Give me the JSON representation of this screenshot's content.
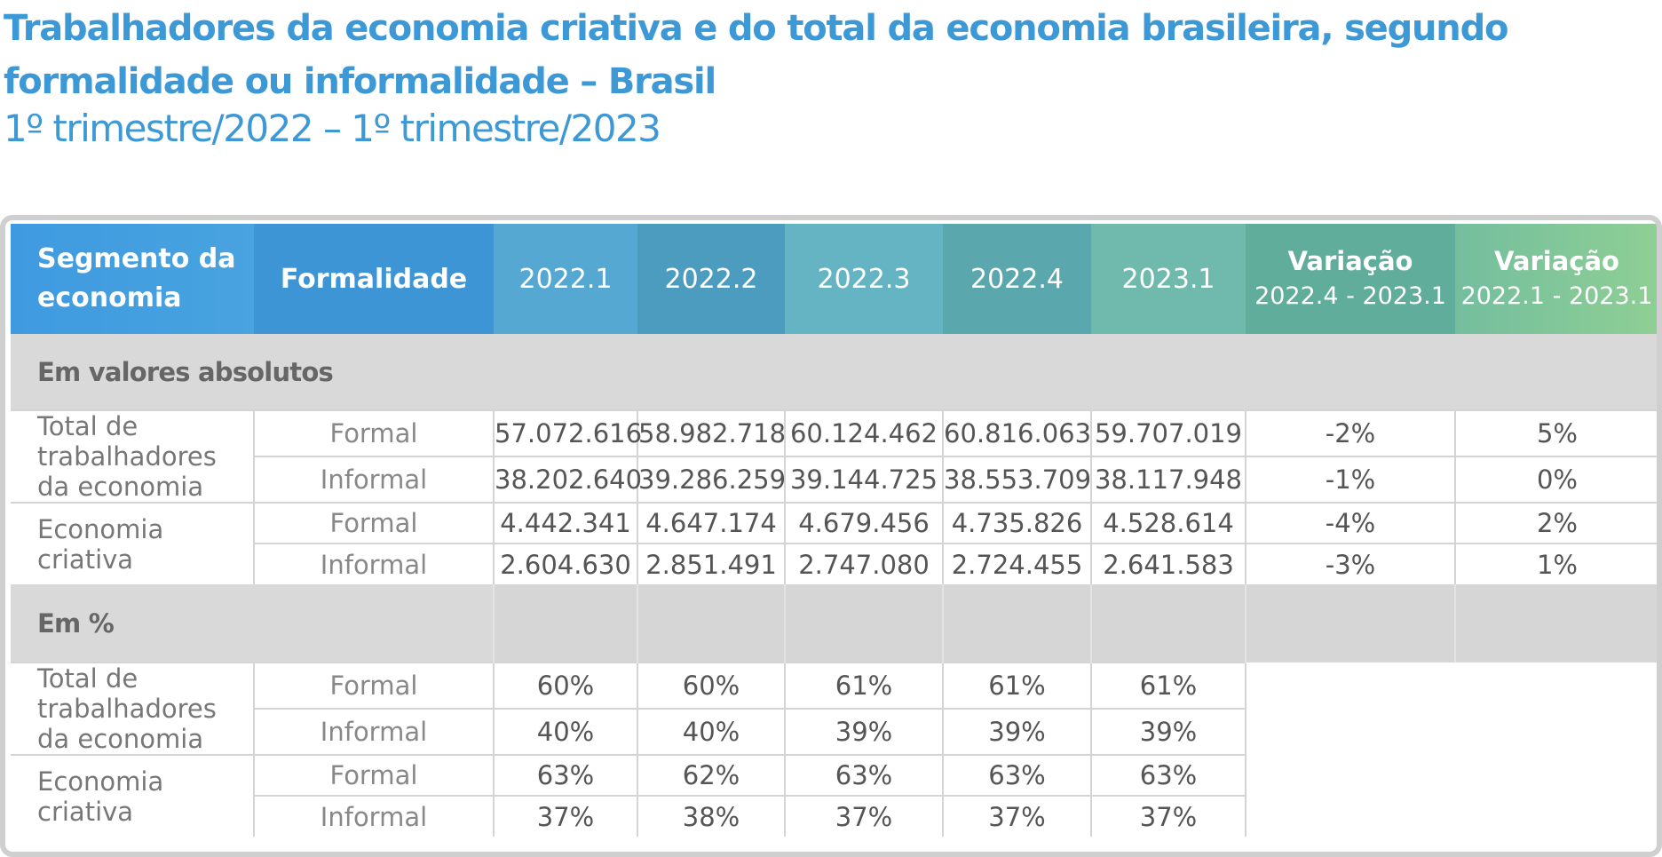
{
  "title": "Trabalhadores da economia criativa e do total da economia brasileira, segundo formalidade ou informalidade – Brasil",
  "subtitle": "1º trimestre/2022 – 1º trimestre/2023",
  "header": {
    "segment": "Segmento da economia",
    "formality": "Formalidade",
    "periods": [
      "2022.1",
      "2022.2",
      "2022.3",
      "2022.4",
      "2023.1"
    ],
    "variation1_title": "Variação",
    "variation1_range": "2022.4 - 2023.1",
    "variation2_title": "Variação",
    "variation2_range": "2022.1 - 2023.1"
  },
  "sections": {
    "absolute": "Em valores absolutos",
    "percent": "Em %"
  },
  "absolute": [
    {
      "segment": "Total de trabalhadores da economia",
      "formality": "Formal",
      "values": [
        "57.072.616",
        "58.982.718",
        "60.124.462",
        "60.816.063",
        "59.707.019"
      ],
      "var1": "-2%",
      "var2": "5%"
    },
    {
      "segment": "",
      "formality": "Informal",
      "values": [
        "38.202.640",
        "39.286.259",
        "39.144.725",
        "38.553.709",
        "38.117.948"
      ],
      "var1": "-1%",
      "var2": "0%"
    },
    {
      "segment": "Economia criativa",
      "formality": "Formal",
      "values": [
        "4.442.341",
        "4.647.174",
        "4.679.456",
        "4.735.826",
        "4.528.614"
      ],
      "var1": "-4%",
      "var2": "2%"
    },
    {
      "segment": "",
      "formality": "Informal",
      "values": [
        "2.604.630",
        "2.851.491",
        "2.747.080",
        "2.724.455",
        "2.641.583"
      ],
      "var1": "-3%",
      "var2": "1%"
    }
  ],
  "percent": [
    {
      "segment": "Total de trabalhadores da economia",
      "formality": "Formal",
      "values": [
        "60%",
        "60%",
        "61%",
        "61%",
        "61%"
      ]
    },
    {
      "segment": "",
      "formality": "Informal",
      "values": [
        "40%",
        "40%",
        "39%",
        "39%",
        "39%"
      ]
    },
    {
      "segment": "Economia criativa",
      "formality": "Formal",
      "values": [
        "63%",
        "62%",
        "63%",
        "63%",
        "63%"
      ]
    },
    {
      "segment": "",
      "formality": "Informal",
      "values": [
        "37%",
        "38%",
        "37%",
        "37%",
        "37%"
      ]
    }
  ]
}
